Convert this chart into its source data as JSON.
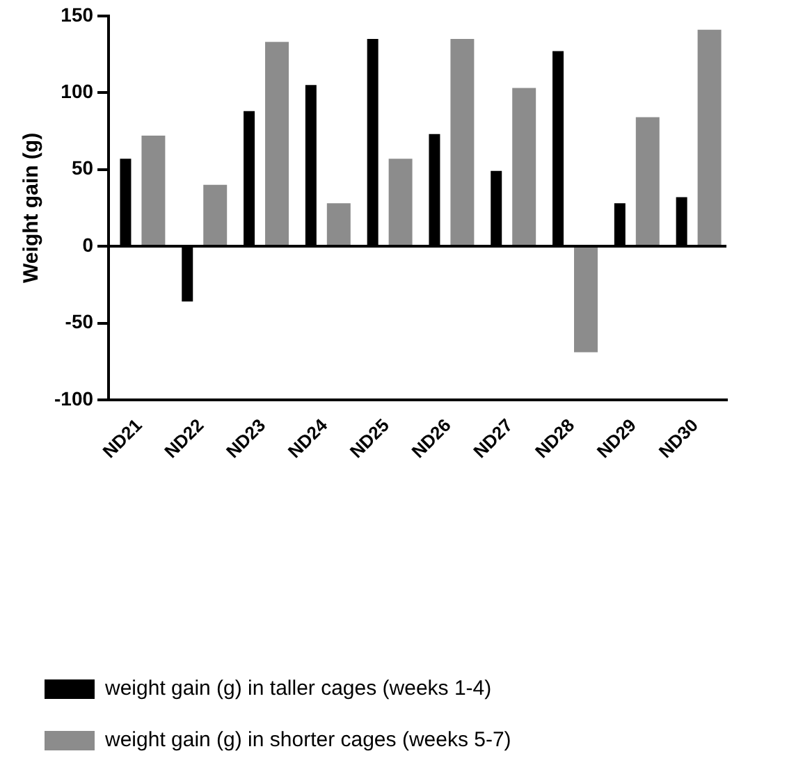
{
  "chart_data": {
    "type": "bar",
    "ylabel": "Weight gain (g)",
    "categories": [
      "ND21",
      "ND22",
      "ND23",
      "ND24",
      "ND25",
      "ND26",
      "ND27",
      "ND28",
      "ND29",
      "ND30"
    ],
    "series": [
      {
        "name": "weight gain (g) in taller cages (weeks 1-4)",
        "color": "#000000",
        "values": [
          57,
          -36,
          88,
          105,
          135,
          73,
          49,
          127,
          28,
          32
        ]
      },
      {
        "name": "weight gain (g) in shorter cages (weeks 5-7)",
        "color": "#8c8c8c",
        "values": [
          72,
          40,
          133,
          28,
          57,
          135,
          103,
          -69,
          84,
          141
        ]
      }
    ],
    "ylim": [
      -100,
      150
    ],
    "yticks": [
      -100,
      -50,
      0,
      50,
      100,
      150
    ],
    "grid": false,
    "legend": "bottom",
    "ref_lines": [
      {
        "axis": "y",
        "value": 0,
        "color": "#000000"
      }
    ]
  }
}
